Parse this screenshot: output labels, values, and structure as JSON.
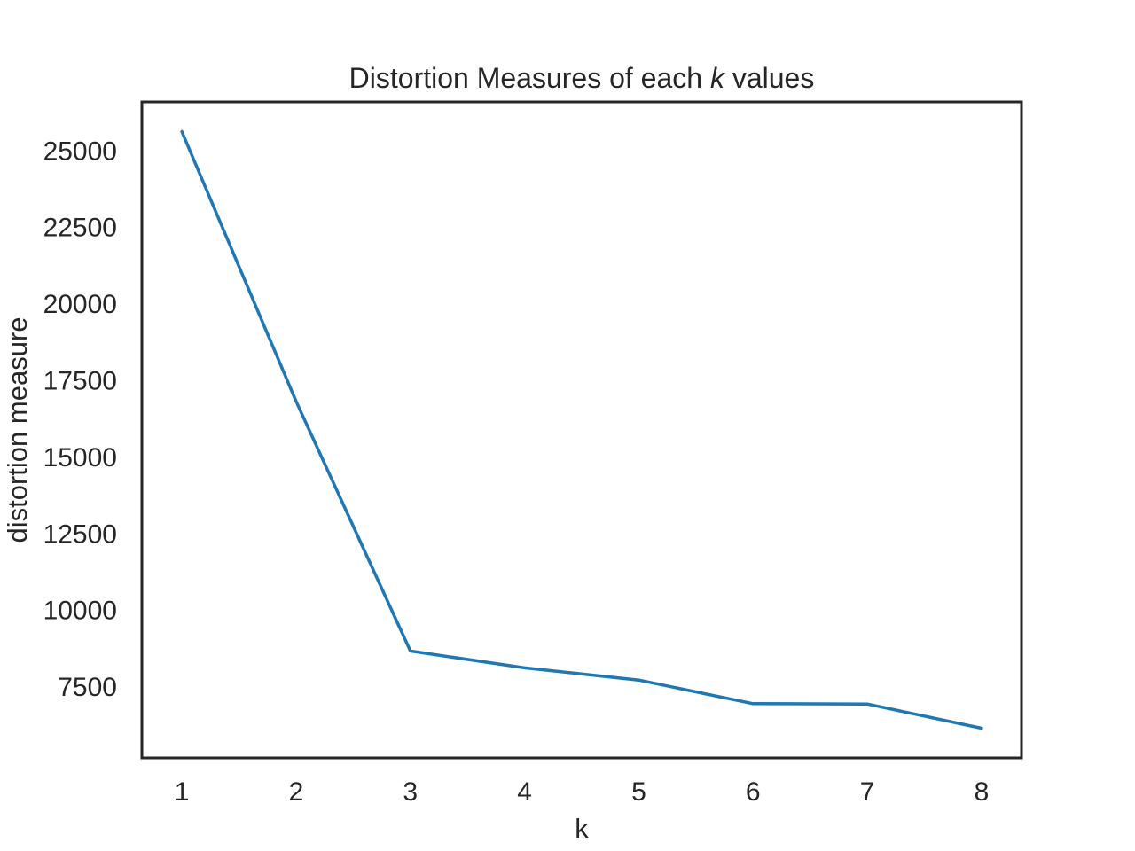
{
  "chart_data": {
    "type": "line",
    "title_parts": {
      "prefix": "Distortion Measures of each ",
      "variable": "k",
      "suffix": " values"
    },
    "xlabel": "k",
    "ylabel": "distortion measure",
    "x": [
      1,
      2,
      3,
      4,
      5,
      6,
      7,
      8
    ],
    "series": [
      {
        "values": [
          25600,
          16800,
          8650,
          8100,
          7700,
          6930,
          6920,
          6130
        ],
        "color": "#1f77b4"
      }
    ],
    "xticks": [
      1,
      2,
      3,
      4,
      5,
      6,
      7,
      8
    ],
    "yticks": [
      7500,
      10000,
      12500,
      15000,
      17500,
      20000,
      22500,
      25000
    ],
    "xlim": [
      0.65,
      8.35
    ],
    "ylim": [
      5160,
      26570
    ],
    "grid": false,
    "frame_color": "#262626",
    "text_color": "#262626"
  }
}
